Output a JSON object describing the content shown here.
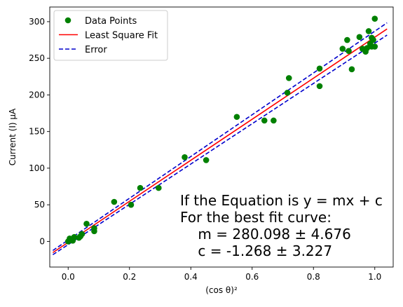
{
  "chart_data": {
    "type": "scatter",
    "title": "",
    "xlabel": "(cos θ)²",
    "ylabel": "Current (I) μA",
    "xlim": [
      -0.06,
      1.06
    ],
    "ylim": [
      -35,
      320
    ],
    "xticks": [
      0.0,
      0.2,
      0.4,
      0.6,
      0.8,
      1.0
    ],
    "xtick_labels": [
      "0.0",
      "0.2",
      "0.4",
      "0.6",
      "0.8",
      "1.0"
    ],
    "yticks": [
      0,
      50,
      100,
      150,
      200,
      250,
      300
    ],
    "ytick_labels": [
      "0",
      "50",
      "100",
      "150",
      "200",
      "250",
      "300"
    ],
    "grid": false,
    "legend_position": "top-left",
    "series": [
      {
        "name": "Data Points",
        "kind": "scatter",
        "color": "#008000",
        "points": [
          [
            0.0,
            0
          ],
          [
            0.005,
            4
          ],
          [
            0.015,
            1
          ],
          [
            0.02,
            6
          ],
          [
            0.035,
            5
          ],
          [
            0.04,
            7
          ],
          [
            0.045,
            10
          ],
          [
            0.06,
            24
          ],
          [
            0.085,
            18
          ],
          [
            0.085,
            14
          ],
          [
            0.15,
            54
          ],
          [
            0.205,
            50
          ],
          [
            0.235,
            73
          ],
          [
            0.295,
            73
          ],
          [
            0.38,
            115
          ],
          [
            0.45,
            111
          ],
          [
            0.55,
            170
          ],
          [
            0.64,
            165
          ],
          [
            0.67,
            165
          ],
          [
            0.715,
            203
          ],
          [
            0.72,
            223
          ],
          [
            0.82,
            236
          ],
          [
            0.82,
            212
          ],
          [
            0.895,
            263
          ],
          [
            0.91,
            275
          ],
          [
            0.915,
            260
          ],
          [
            0.925,
            235
          ],
          [
            0.95,
            279
          ],
          [
            0.96,
            263
          ],
          [
            0.97,
            259
          ],
          [
            0.975,
            264
          ],
          [
            0.98,
            287
          ],
          [
            0.985,
            270
          ],
          [
            0.99,
            266
          ],
          [
            0.995,
            275
          ],
          [
            1.0,
            304
          ],
          [
            1.0,
            266
          ],
          [
            0.99,
            278
          ]
        ]
      },
      {
        "name": "Least Square Fit",
        "kind": "line",
        "color": "#ff0000",
        "x": [
          -0.05,
          1.04
        ],
        "y": [
          -15.27,
          290.03
        ]
      },
      {
        "name": "Error",
        "kind": "line",
        "style": "dashed",
        "color": "#0000cc",
        "x": [
          -0.05,
          1.04
        ],
        "y": [
          -12.4,
          298.38
        ]
      },
      {
        "name": "",
        "kind": "line",
        "style": "dashed",
        "color": "#0000cc",
        "x": [
          -0.05,
          1.04
        ],
        "y": [
          -18.14,
          281.69
        ]
      }
    ],
    "annotation": [
      "If the Equation is y = mx + c",
      "For the best fit curve:",
      "    m = 280.098 ± 4.676",
      "    c = -1.268 ± 3.227"
    ]
  }
}
